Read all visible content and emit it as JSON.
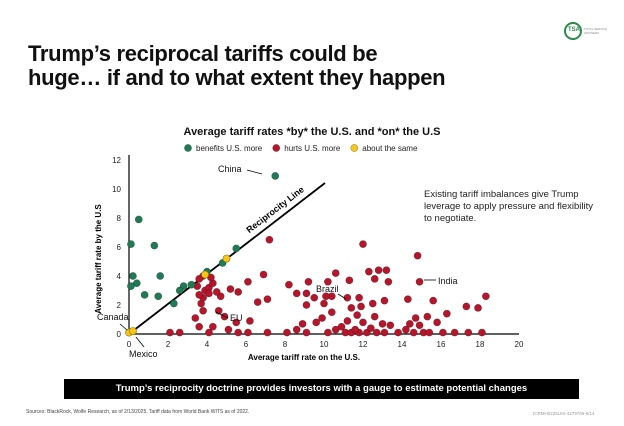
{
  "logo": {
    "mark": "TSA",
    "sub": "TOTAL SERVICE ADVISERS"
  },
  "headline": "Trump’s reciprocal tariffs could be huge… if and to what extent they happen",
  "side_note": "Existing tariff imbalances give Trump leverage to apply pressure and flexibility to negotiate.",
  "banner": "Trump’s reciprocity doctrine provides investors with a gauge to estimate potential changes",
  "footer": {
    "sources": "Sources: BlackRock, Wolfe Research, as of 2/13/2025. Tariff data from World Bank WITS as of 2022.",
    "code": "ICRMH0225U/S-4279765-5/14"
  },
  "chart_data": {
    "type": "scatter",
    "title": "Average tariff rates *by* the U.S. and *on* the U.S",
    "xlabel": "Average tariff rate on the U.S.",
    "ylabel": "Average tariff rate by the U.S",
    "xlim": [
      0,
      20
    ],
    "ylim": [
      0,
      12
    ],
    "xticks": [
      0,
      2,
      4,
      6,
      8,
      10,
      12,
      14,
      16,
      18,
      20
    ],
    "yticks": [
      0,
      2,
      4,
      6,
      8,
      10,
      12
    ],
    "grid": false,
    "legend_position": "top",
    "reference_line": {
      "label": "Reciprocity Line",
      "from": [
        0,
        0
      ],
      "to": [
        11,
        11
      ]
    },
    "colors": {
      "benefits": "#1f7a55",
      "hurts": "#b5162b",
      "same": "#f5c518"
    },
    "series": [
      {
        "name": "benefits U.S. more",
        "key": "benefits",
        "points": [
          [
            7.5,
            10.9
          ],
          [
            0.5,
            7.9
          ],
          [
            0.1,
            6.2
          ],
          [
            1.3,
            6.1
          ],
          [
            0.2,
            4.0
          ],
          [
            1.6,
            4.0
          ],
          [
            0.4,
            3.5
          ],
          [
            0.1,
            3.3
          ],
          [
            0.8,
            2.7
          ],
          [
            1.5,
            2.6
          ],
          [
            2.8,
            3.3
          ],
          [
            2.6,
            3.0
          ],
          [
            3.2,
            3.4
          ],
          [
            4.0,
            4.3
          ],
          [
            4.8,
            4.9
          ],
          [
            5.5,
            5.9
          ],
          [
            2.3,
            2.1
          ]
        ]
      },
      {
        "name": "hurts U.S. more",
        "key": "hurts",
        "points": [
          [
            2.1,
            0.1
          ],
          [
            2.6,
            0.1
          ],
          [
            4.1,
            0.1
          ],
          [
            5.6,
            0.1
          ],
          [
            6.1,
            0.1
          ],
          [
            7.1,
            0.1
          ],
          [
            8.1,
            0.1
          ],
          [
            9.1,
            0.1
          ],
          [
            10.2,
            0.1
          ],
          [
            11.1,
            0.1
          ],
          [
            11.4,
            0.1
          ],
          [
            11.8,
            0.1
          ],
          [
            12.2,
            0.1
          ],
          [
            12.7,
            0.1
          ],
          [
            13.1,
            0.1
          ],
          [
            13.8,
            0.1
          ],
          [
            14.6,
            0.1
          ],
          [
            15.1,
            0.1
          ],
          [
            15.4,
            0.1
          ],
          [
            16.1,
            0.1
          ],
          [
            16.7,
            0.1
          ],
          [
            17.4,
            0.1
          ],
          [
            18.1,
            0.1
          ],
          [
            5.1,
            0.3
          ],
          [
            8.6,
            0.3
          ],
          [
            10.6,
            0.3
          ],
          [
            11.6,
            0.3
          ],
          [
            12.4,
            0.4
          ],
          [
            14.2,
            0.3
          ],
          [
            10.9,
            0.5
          ],
          [
            13.4,
            0.6
          ],
          [
            3.6,
            0.5
          ],
          [
            4.3,
            0.5
          ],
          [
            8.9,
            0.7
          ],
          [
            9.6,
            0.8
          ],
          [
            11.2,
            0.9
          ],
          [
            12.0,
            0.8
          ],
          [
            13.0,
            0.7
          ],
          [
            14.4,
            0.7
          ],
          [
            14.9,
            0.6
          ],
          [
            15.8,
            0.8
          ],
          [
            5.5,
            0.8
          ],
          [
            6.2,
            0.9
          ],
          [
            9.9,
            1.1
          ],
          [
            11.7,
            1.3
          ],
          [
            12.6,
            1.2
          ],
          [
            15.3,
            1.2
          ],
          [
            14.7,
            1.1
          ],
          [
            16.3,
            1.4
          ],
          [
            4.9,
            1.2
          ],
          [
            3.4,
            1.1
          ],
          [
            10.4,
            1.5
          ],
          [
            3.8,
            1.6
          ],
          [
            4.6,
            1.6
          ],
          [
            11.4,
            1.8
          ],
          [
            11.9,
            1.9
          ],
          [
            12.5,
            2.1
          ],
          [
            17.9,
            1.8
          ],
          [
            17.3,
            1.9
          ],
          [
            9.1,
            2.0
          ],
          [
            10.0,
            2.1
          ],
          [
            3.7,
            2.1
          ],
          [
            3.8,
            2.5
          ],
          [
            4.7,
            2.6
          ],
          [
            6.6,
            2.2
          ],
          [
            7.1,
            2.4
          ],
          [
            9.5,
            2.5
          ],
          [
            10.4,
            2.6
          ],
          [
            11.8,
            2.5
          ],
          [
            13.1,
            2.3
          ],
          [
            14.3,
            2.4
          ],
          [
            15.6,
            2.3
          ],
          [
            18.3,
            2.6
          ],
          [
            4.5,
            2.9
          ],
          [
            3.9,
            3.0
          ],
          [
            5.6,
            2.9
          ],
          [
            8.6,
            2.8
          ],
          [
            9.1,
            2.8
          ],
          [
            10.1,
            2.6
          ],
          [
            11.2,
            2.5
          ],
          [
            4.1,
            3.2
          ],
          [
            4.3,
            3.5
          ],
          [
            3.5,
            3.3
          ],
          [
            6.1,
            3.6
          ],
          [
            5.2,
            3.1
          ],
          [
            8.2,
            3.4
          ],
          [
            9.2,
            3.6
          ],
          [
            10.2,
            3.6
          ],
          [
            11.3,
            3.7
          ],
          [
            12.6,
            3.8
          ],
          [
            14.9,
            3.6
          ],
          [
            13.3,
            3.6
          ],
          [
            6.9,
            4.1
          ],
          [
            3.8,
            4.0
          ],
          [
            3.6,
            3.8
          ],
          [
            4.2,
            3.9
          ],
          [
            10.6,
            4.2
          ],
          [
            12.3,
            4.3
          ],
          [
            12.8,
            4.4
          ],
          [
            13.2,
            4.4
          ],
          [
            12.0,
            6.2
          ],
          [
            7.2,
            6.5
          ],
          [
            14.8,
            5.4
          ],
          [
            3.6,
            2.7
          ],
          [
            4.1,
            2.8
          ]
        ]
      },
      {
        "name": "about the same",
        "key": "same",
        "points": [
          [
            0.0,
            0.1
          ],
          [
            0.2,
            0.2
          ],
          [
            3.9,
            4.1
          ],
          [
            5.0,
            5.2
          ]
        ]
      }
    ],
    "annotations": [
      {
        "text": "China",
        "at": [
          7.5,
          10.9
        ]
      },
      {
        "text": "India",
        "at": [
          14.9,
          3.6
        ]
      },
      {
        "text": "Brazil",
        "at": [
          11.3,
          2.5
        ]
      },
      {
        "text": "EU",
        "at": [
          3.9,
          1.7
        ]
      },
      {
        "text": "Canada",
        "at": [
          0.0,
          0.1
        ]
      },
      {
        "text": "Mexico",
        "at": [
          0.2,
          0.1
        ]
      }
    ]
  }
}
